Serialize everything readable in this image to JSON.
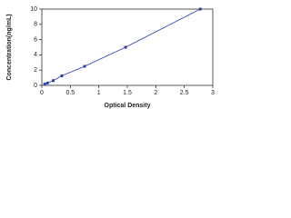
{
  "chart_data": {
    "type": "scatter",
    "x_label": "Optical Density",
    "y_label": "Concentration(ng/mL)",
    "x": [
      0.05,
      0.1,
      0.2,
      0.35,
      0.75,
      1.47,
      2.78
    ],
    "series": [
      {
        "color": "#2a3fb0",
        "values": [
          0.16,
          0.31,
          0.625,
          1.25,
          2.5,
          5,
          10
        ]
      }
    ],
    "xlim": [
      0,
      3
    ],
    "xticks": [
      0,
      0.5,
      1,
      1.5,
      2,
      2.5,
      3
    ],
    "ylim": [
      0,
      10
    ],
    "yticks": [
      0,
      2,
      4,
      6,
      8,
      10
    ],
    "grid": false
  }
}
